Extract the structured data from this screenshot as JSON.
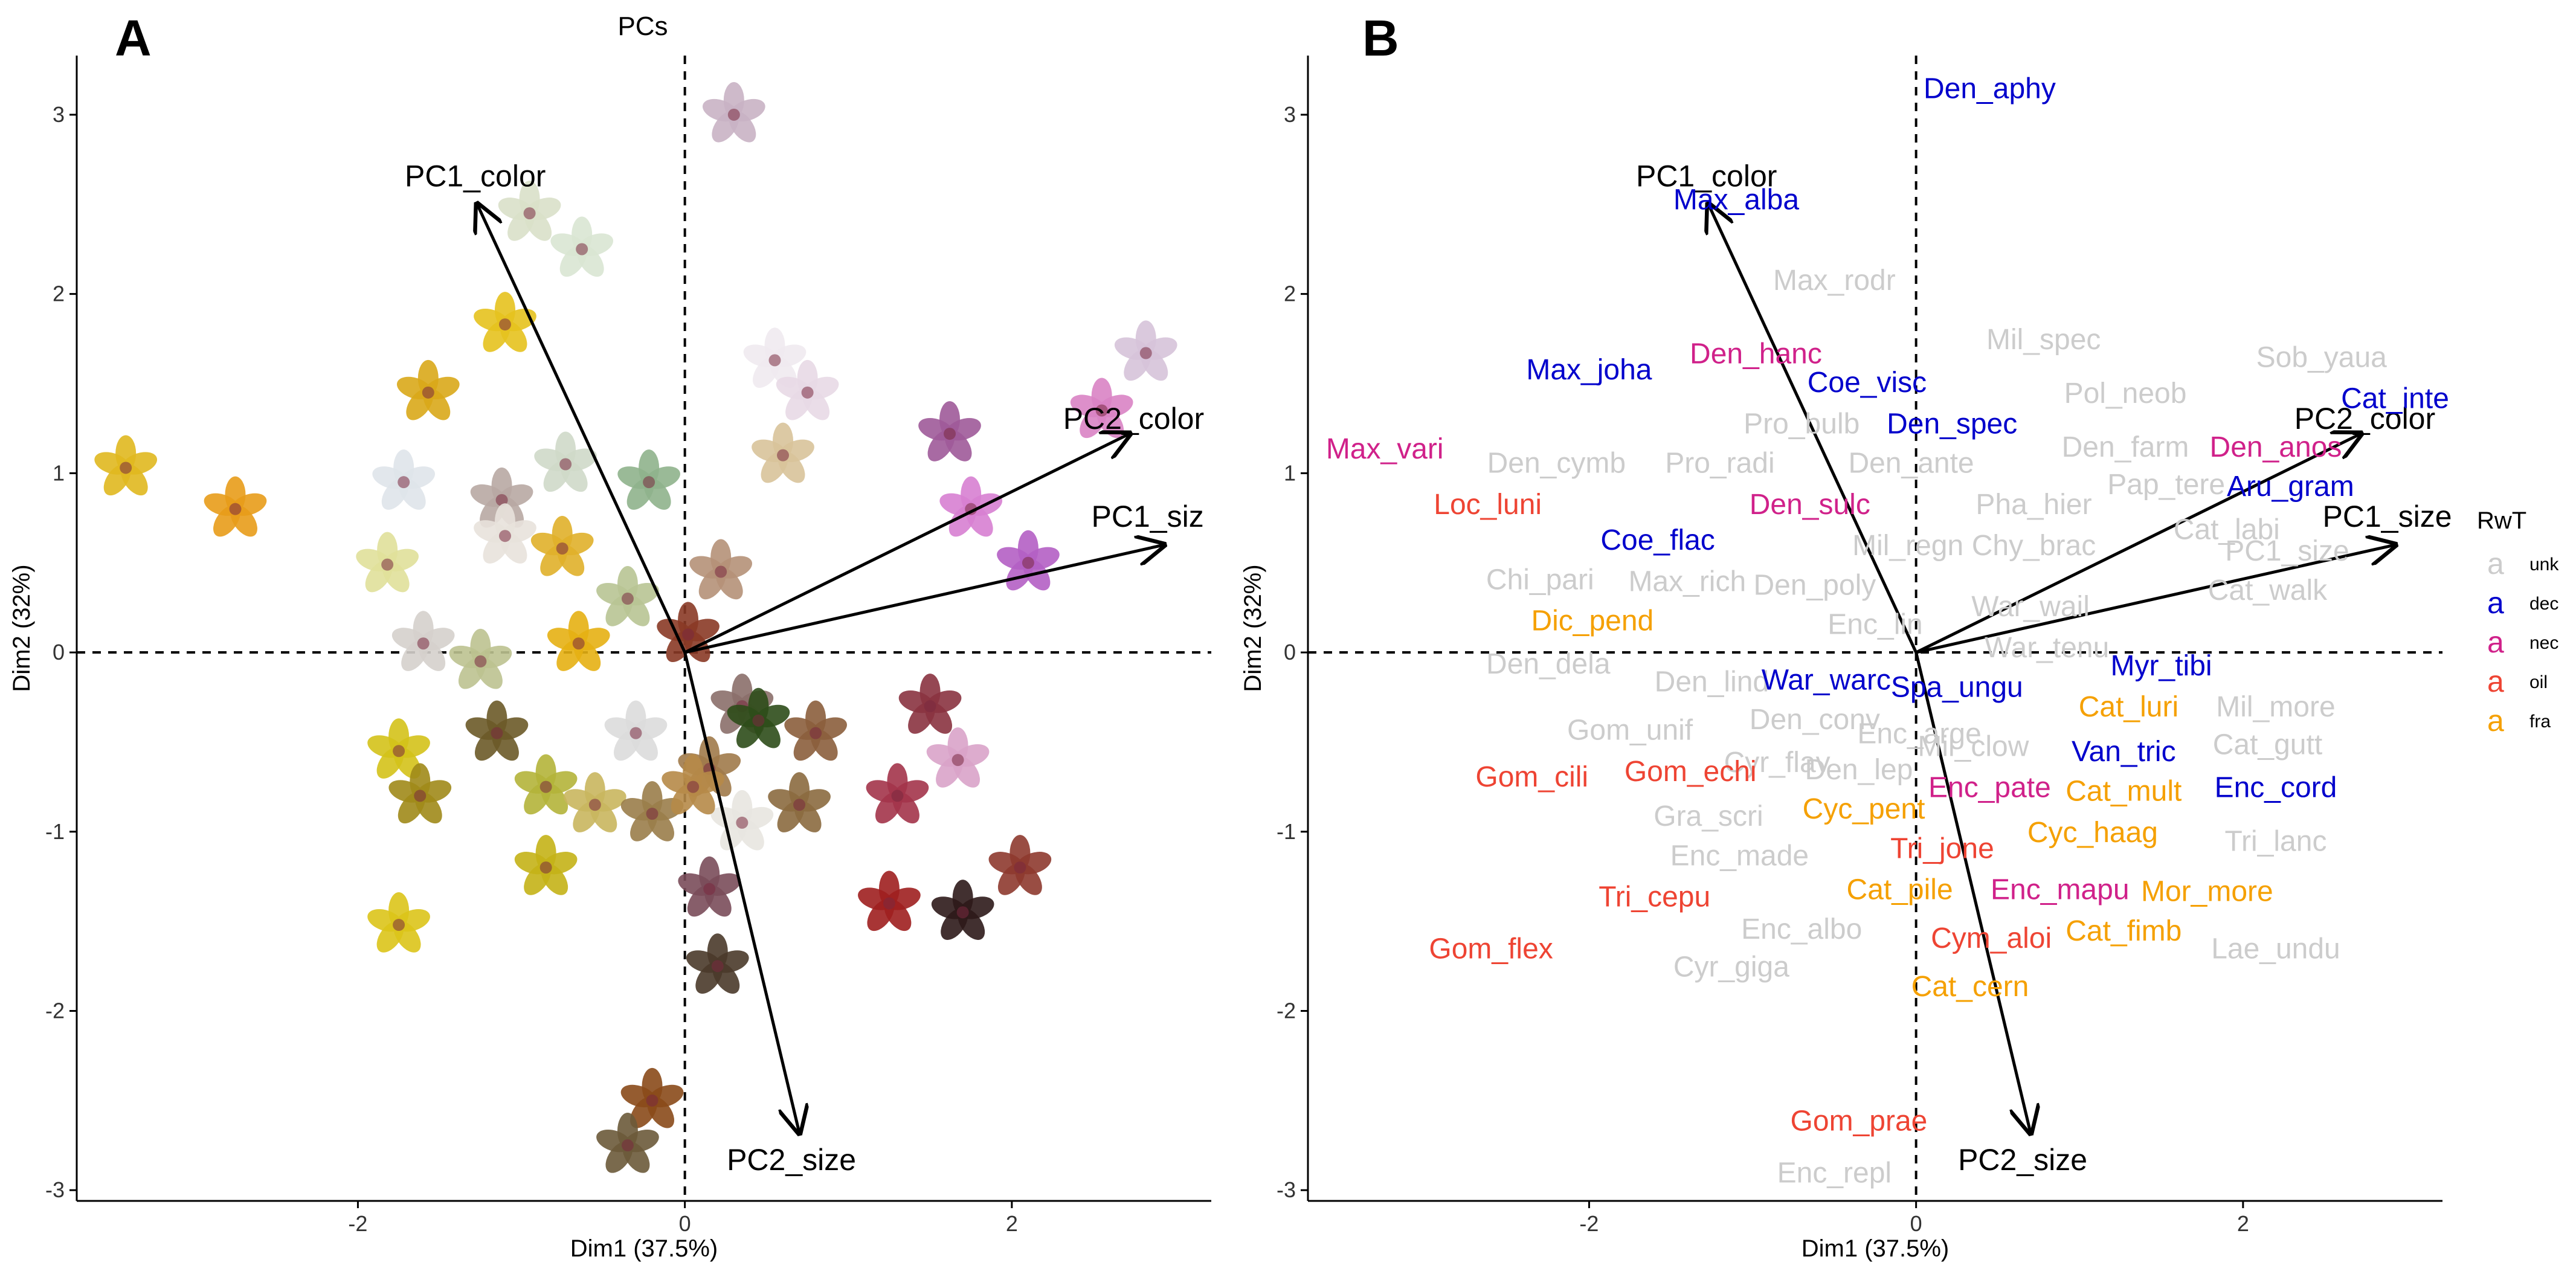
{
  "chart_data": [
    {
      "type": "scatter",
      "panel_label": "A",
      "title": "PCs",
      "xlabel": "Dim1 (37.5%)",
      "ylabel": "Dim2 (32%)",
      "xlim": [
        -3.72,
        3.22
      ],
      "ylim": [
        -3.06,
        3.33
      ],
      "xticks": [
        -2,
        0,
        2
      ],
      "yticks": [
        -3,
        -2,
        -1,
        0,
        1,
        2,
        3
      ],
      "xtick_labels": [
        "-2",
        "0",
        "2"
      ],
      "ytick_labels": [
        "-3",
        "-2",
        "-1",
        "0",
        "1",
        "2",
        "3"
      ],
      "arrows": [
        {
          "label": "PC1_color",
          "x": -1.27,
          "y": 2.5
        },
        {
          "label": "PC2_color",
          "x": 2.72,
          "y": 1.22
        },
        {
          "label": "PC1_siz",
          "x": 2.93,
          "y": 0.6
        },
        {
          "label": "PC2_size",
          "x": 0.7,
          "y": -2.68
        }
      ],
      "flowers": [
        {
          "x": 0.3,
          "y": 3.0,
          "c": "#c9b3c4"
        },
        {
          "x": -0.95,
          "y": 2.45,
          "c": "#d9e0c9"
        },
        {
          "x": -0.63,
          "y": 2.25,
          "c": "#d9e6d3"
        },
        {
          "x": -1.1,
          "y": 1.83,
          "c": "#e6c21e"
        },
        {
          "x": -1.57,
          "y": 1.45,
          "c": "#d9a81a"
        },
        {
          "x": 0.55,
          "y": 1.63,
          "c": "#f0eaf0"
        },
        {
          "x": 0.75,
          "y": 1.45,
          "c": "#e8d9e6"
        },
        {
          "x": 2.82,
          "y": 1.67,
          "c": "#d6c3d9"
        },
        {
          "x": 2.55,
          "y": 1.35,
          "c": "#d983c4"
        },
        {
          "x": 1.62,
          "y": 1.22,
          "c": "#9e5a99"
        },
        {
          "x": -3.42,
          "y": 1.03,
          "c": "#e0b81f"
        },
        {
          "x": -2.75,
          "y": 0.8,
          "c": "#e89c1a"
        },
        {
          "x": -1.72,
          "y": 0.95,
          "c": "#dfe4ea"
        },
        {
          "x": -0.73,
          "y": 1.05,
          "c": "#cfd9c9"
        },
        {
          "x": -0.22,
          "y": 0.95,
          "c": "#8fb38c"
        },
        {
          "x": 0.6,
          "y": 1.1,
          "c": "#d8c39a"
        },
        {
          "x": -1.12,
          "y": 0.85,
          "c": "#b8a9a3"
        },
        {
          "x": -1.82,
          "y": 0.49,
          "c": "#e0e09a"
        },
        {
          "x": -1.1,
          "y": 0.65,
          "c": "#e8e2dc"
        },
        {
          "x": -0.75,
          "y": 0.58,
          "c": "#e0b02a"
        },
        {
          "x": 1.75,
          "y": 0.8,
          "c": "#d77fd1"
        },
        {
          "x": 2.1,
          "y": 0.5,
          "c": "#b45fc4"
        },
        {
          "x": 0.22,
          "y": 0.45,
          "c": "#b59178"
        },
        {
          "x": -0.35,
          "y": 0.3,
          "c": "#b8c493"
        },
        {
          "x": -1.6,
          "y": 0.05,
          "c": "#d5d0cc"
        },
        {
          "x": -1.25,
          "y": -0.05,
          "c": "#bcc290"
        },
        {
          "x": -0.65,
          "y": 0.05,
          "c": "#e6b013"
        },
        {
          "x": 0.02,
          "y": 0.1,
          "c": "#8a3a26"
        },
        {
          "x": 0.35,
          "y": -0.3,
          "c": "#8b6f6a"
        },
        {
          "x": 0.45,
          "y": -0.38,
          "c": "#2e4c19"
        },
        {
          "x": 0.8,
          "y": -0.45,
          "c": "#8b5e3c"
        },
        {
          "x": 1.5,
          "y": -0.3,
          "c": "#8a3340"
        },
        {
          "x": 1.67,
          "y": -0.6,
          "c": "#d9a3c9"
        },
        {
          "x": -1.75,
          "y": -0.55,
          "c": "#d4c21a"
        },
        {
          "x": -1.62,
          "y": -0.8,
          "c": "#a08a1a"
        },
        {
          "x": -1.15,
          "y": -0.45,
          "c": "#6b5a28"
        },
        {
          "x": -0.85,
          "y": -0.75,
          "c": "#b4b43a"
        },
        {
          "x": -0.55,
          "y": -0.85,
          "c": "#c9b65e"
        },
        {
          "x": -0.2,
          "y": -0.9,
          "c": "#9a7d4a"
        },
        {
          "x": 0.15,
          "y": -0.65,
          "c": "#a07a4a"
        },
        {
          "x": 0.35,
          "y": -0.95,
          "c": "#e8e6e0"
        },
        {
          "x": 0.7,
          "y": -0.85,
          "c": "#8b6a3f"
        },
        {
          "x": -0.85,
          "y": -1.2,
          "c": "#c4b217"
        },
        {
          "x": 0.15,
          "y": -1.32,
          "c": "#7a4c5a"
        },
        {
          "x": 1.25,
          "y": -1.4,
          "c": "#9e1f1f"
        },
        {
          "x": 1.7,
          "y": -1.45,
          "c": "#2e1a1a"
        },
        {
          "x": 2.05,
          "y": -1.2,
          "c": "#8e3a2f"
        },
        {
          "x": -1.75,
          "y": -1.52,
          "c": "#dcc41a"
        },
        {
          "x": 0.2,
          "y": -1.75,
          "c": "#4a3a2a"
        },
        {
          "x": -0.2,
          "y": -2.5,
          "c": "#8a4a1a"
        },
        {
          "x": -0.35,
          "y": -2.75,
          "c": "#6b5a3a"
        },
        {
          "x": -0.3,
          "y": -0.45,
          "c": "#dcdcdc"
        },
        {
          "x": 0.05,
          "y": -0.75,
          "c": "#b68a48"
        },
        {
          "x": 1.3,
          "y": -0.8,
          "c": "#a3344a"
        }
      ]
    },
    {
      "type": "scatter",
      "panel_label": "B",
      "xlabel": "Dim1 (37.5%)",
      "ylabel": "Dim2 (32%)",
      "xlim": [
        -3.72,
        3.22
      ],
      "ylim": [
        -3.06,
        3.33
      ],
      "xticks": [
        -2,
        0,
        2
      ],
      "yticks": [
        -3,
        -2,
        -1,
        0,
        1,
        2,
        3
      ],
      "xtick_labels": [
        "-2",
        "0",
        "2"
      ],
      "ytick_labels": [
        "-3",
        "-2",
        "-1",
        "0",
        "1",
        "2",
        "3"
      ],
      "arrows": [
        {
          "label": "PC1_color",
          "x": -1.27,
          "y": 2.5
        },
        {
          "label": "PC2_color",
          "x": 2.72,
          "y": 1.22
        },
        {
          "label": "PC1_size",
          "x": 2.93,
          "y": 0.6
        },
        {
          "label": "PC2_size",
          "x": 0.7,
          "y": -2.68
        }
      ],
      "species": [
        {
          "name": "Den_aphy",
          "x": 0.45,
          "y": 3.15,
          "group": "dec"
        },
        {
          "name": "Max_alba",
          "x": -1.1,
          "y": 2.53,
          "group": "dec"
        },
        {
          "name": "Max_rodr",
          "x": -0.5,
          "y": 2.08,
          "group": "unk"
        },
        {
          "name": "Mil_spec",
          "x": 0.78,
          "y": 1.75,
          "group": "unk"
        },
        {
          "name": "Sob_yaua",
          "x": 2.48,
          "y": 1.65,
          "group": "unk"
        },
        {
          "name": "Den_hanc",
          "x": -0.98,
          "y": 1.67,
          "group": "nec"
        },
        {
          "name": "Max_joha",
          "x": -2.0,
          "y": 1.58,
          "group": "dec"
        },
        {
          "name": "Coe_visc",
          "x": -0.3,
          "y": 1.51,
          "group": "dec"
        },
        {
          "name": "Pol_neob",
          "x": 1.28,
          "y": 1.45,
          "group": "unk"
        },
        {
          "name": "Cat_inte",
          "x": 2.93,
          "y": 1.42,
          "group": "dec"
        },
        {
          "name": "Pro_bulb",
          "x": -0.7,
          "y": 1.28,
          "group": "unk"
        },
        {
          "name": "Den_spec",
          "x": 0.22,
          "y": 1.28,
          "group": "dec"
        },
        {
          "name": "Den_farm",
          "x": 1.28,
          "y": 1.15,
          "group": "unk"
        },
        {
          "name": "Den_anos",
          "x": 2.2,
          "y": 1.15,
          "group": "nec"
        },
        {
          "name": "Max_vari",
          "x": -3.25,
          "y": 1.14,
          "group": "nec"
        },
        {
          "name": "Den_cymb",
          "x": -2.2,
          "y": 1.06,
          "group": "unk"
        },
        {
          "name": "Pro_radi",
          "x": -1.2,
          "y": 1.06,
          "group": "unk"
        },
        {
          "name": "Den_ante",
          "x": -0.03,
          "y": 1.06,
          "group": "unk"
        },
        {
          "name": "Pap_tere",
          "x": 1.53,
          "y": 0.94,
          "group": "unk"
        },
        {
          "name": "Aru_gram",
          "x": 2.29,
          "y": 0.93,
          "group": "dec"
        },
        {
          "name": "Loc_luni",
          "x": -2.62,
          "y": 0.83,
          "group": "oil"
        },
        {
          "name": "Den_sulc",
          "x": -0.65,
          "y": 0.83,
          "group": "nec"
        },
        {
          "name": "Pha_hier",
          "x": 0.72,
          "y": 0.83,
          "group": "unk"
        },
        {
          "name": "Cat_labi",
          "x": 1.9,
          "y": 0.69,
          "group": "unk"
        },
        {
          "name": "PC1_size",
          "x": 2.27,
          "y": 0.57,
          "group": "unk"
        },
        {
          "name": "Coe_flac",
          "x": -1.58,
          "y": 0.63,
          "group": "dec"
        },
        {
          "name": "Mil_regn",
          "x": -0.05,
          "y": 0.6,
          "group": "unk"
        },
        {
          "name": "Chy_brac",
          "x": 0.72,
          "y": 0.6,
          "group": "unk"
        },
        {
          "name": "Chi_pari",
          "x": -2.3,
          "y": 0.41,
          "group": "unk"
        },
        {
          "name": "Max_rich",
          "x": -1.4,
          "y": 0.4,
          "group": "unk"
        },
        {
          "name": "Den_poly",
          "x": -0.62,
          "y": 0.38,
          "group": "unk"
        },
        {
          "name": "Cat_walk",
          "x": 2.15,
          "y": 0.35,
          "group": "unk"
        },
        {
          "name": "War_wail",
          "x": 0.7,
          "y": 0.26,
          "group": "unk"
        },
        {
          "name": "Dic_pend",
          "x": -1.98,
          "y": 0.18,
          "group": "fra"
        },
        {
          "name": "Enc_lin",
          "x": -0.25,
          "y": 0.16,
          "group": "unk"
        },
        {
          "name": "War_tenu",
          "x": 0.8,
          "y": 0.03,
          "group": "unk"
        },
        {
          "name": "Den_dela",
          "x": -2.25,
          "y": -0.06,
          "group": "unk"
        },
        {
          "name": "Den_lind",
          "x": -1.25,
          "y": -0.16,
          "group": "unk"
        },
        {
          "name": "War_warc",
          "x": -0.55,
          "y": -0.15,
          "group": "dec"
        },
        {
          "name": "Spa_ungu",
          "x": 0.25,
          "y": -0.19,
          "group": "dec"
        },
        {
          "name": "Myr_tibi",
          "x": 1.5,
          "y": -0.07,
          "group": "dec"
        },
        {
          "name": "Gom_unif",
          "x": -1.75,
          "y": -0.43,
          "group": "unk"
        },
        {
          "name": "Den_conv",
          "x": -0.62,
          "y": -0.37,
          "group": "unk"
        },
        {
          "name": "Cat_luri",
          "x": 1.3,
          "y": -0.3,
          "group": "fra"
        },
        {
          "name": "Mil_more",
          "x": 2.2,
          "y": -0.3,
          "group": "unk"
        },
        {
          "name": "Enc_arge",
          "x": 0.02,
          "y": -0.45,
          "group": "unk"
        },
        {
          "name": "Mil_clow",
          "x": 0.35,
          "y": -0.52,
          "group": "unk"
        },
        {
          "name": "Cat_gutt",
          "x": 2.15,
          "y": -0.51,
          "group": "unk"
        },
        {
          "name": "Van_tric",
          "x": 1.27,
          "y": -0.55,
          "group": "dec"
        },
        {
          "name": "Cyr_flav",
          "x": -0.85,
          "y": -0.61,
          "group": "unk"
        },
        {
          "name": "Den_lep",
          "x": -0.35,
          "y": -0.65,
          "group": "unk"
        },
        {
          "name": "Gom_cili",
          "x": -2.35,
          "y": -0.69,
          "group": "oil"
        },
        {
          "name": "Gom_echi",
          "x": -1.38,
          "y": -0.66,
          "group": "oil"
        },
        {
          "name": "Enc_pate",
          "x": 0.45,
          "y": -0.75,
          "group": "nec"
        },
        {
          "name": "Cat_mult",
          "x": 1.27,
          "y": -0.77,
          "group": "fra"
        },
        {
          "name": "Enc_cord",
          "x": 2.2,
          "y": -0.75,
          "group": "dec"
        },
        {
          "name": "Cyc_pent",
          "x": -0.32,
          "y": -0.87,
          "group": "fra"
        },
        {
          "name": "Gra_scri",
          "x": -1.27,
          "y": -0.91,
          "group": "unk"
        },
        {
          "name": "Cyc_haag",
          "x": 1.08,
          "y": -1.0,
          "group": "fra"
        },
        {
          "name": "Tri_jone",
          "x": 0.16,
          "y": -1.09,
          "group": "oil"
        },
        {
          "name": "Tri_lanc",
          "x": 2.2,
          "y": -1.05,
          "group": "unk"
        },
        {
          "name": "Enc_made",
          "x": -1.08,
          "y": -1.13,
          "group": "unk"
        },
        {
          "name": "Tri_cepu",
          "x": -1.6,
          "y": -1.36,
          "group": "oil"
        },
        {
          "name": "Cat_pile",
          "x": -0.1,
          "y": -1.32,
          "group": "fra"
        },
        {
          "name": "Enc_mapu",
          "x": 0.88,
          "y": -1.32,
          "group": "nec"
        },
        {
          "name": "Mor_more",
          "x": 1.78,
          "y": -1.33,
          "group": "fra"
        },
        {
          "name": "Enc_albo",
          "x": -0.7,
          "y": -1.54,
          "group": "unk"
        },
        {
          "name": "Cym_aloi",
          "x": 0.46,
          "y": -1.59,
          "group": "oil"
        },
        {
          "name": "Cat_fimb",
          "x": 1.27,
          "y": -1.55,
          "group": "fra"
        },
        {
          "name": "Gom_flex",
          "x": -2.6,
          "y": -1.65,
          "group": "oil"
        },
        {
          "name": "Lae_undu",
          "x": 2.2,
          "y": -1.65,
          "group": "unk"
        },
        {
          "name": "Cyr_giga",
          "x": -1.13,
          "y": -1.75,
          "group": "unk"
        },
        {
          "name": "Cat_cern",
          "x": 0.33,
          "y": -1.86,
          "group": "fra"
        },
        {
          "name": "Gom_prae",
          "x": -0.35,
          "y": -2.61,
          "group": "oil"
        },
        {
          "name": "Enc_repl",
          "x": -0.5,
          "y": -2.9,
          "group": "unk"
        }
      ],
      "legend": {
        "title": "RwT",
        "position": "right",
        "entries": [
          {
            "key": "unk",
            "glyph": "a",
            "color": "#cccccc"
          },
          {
            "key": "dec",
            "glyph": "a",
            "color": "#0000cc"
          },
          {
            "key": "nec",
            "glyph": "a",
            "color": "#d0218a"
          },
          {
            "key": "oil",
            "glyph": "a",
            "color": "#ee4433"
          },
          {
            "key": "fra",
            "glyph": "a",
            "color": "#f5a000"
          }
        ]
      }
    }
  ],
  "colors": {
    "unk": "#cccccc",
    "dec": "#0000cc",
    "nec": "#d0218a",
    "oil": "#ee4433",
    "fra": "#f5a000"
  }
}
